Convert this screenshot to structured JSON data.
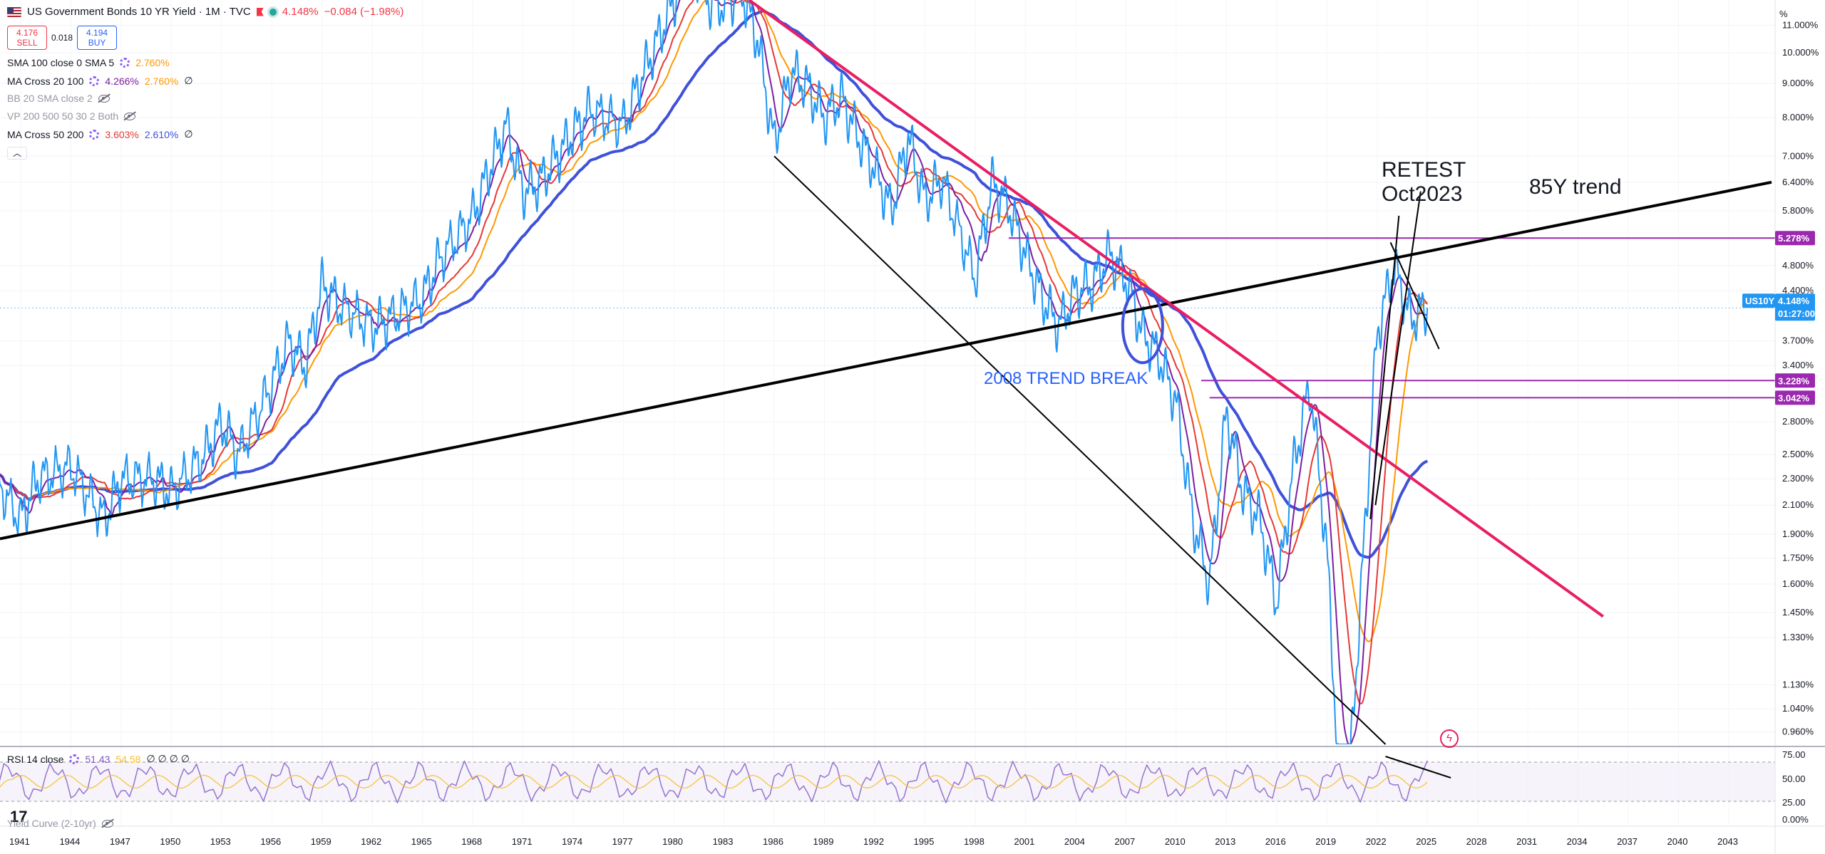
{
  "header": {
    "title": "US Government Bonds 10 YR Yield · 1M · TVC",
    "last_value": "4.148%",
    "change": "−0.084 (−1.98%)"
  },
  "trade": {
    "sell_price": "4.176",
    "sell_label": "SELL",
    "spread": "0.018",
    "buy_price": "4.194",
    "buy_label": "BUY"
  },
  "indicators": [
    {
      "name": "SMA 100 close 0 SMA 5",
      "v1": "2.760%",
      "v2": "",
      "v3": ""
    },
    {
      "name": "MA Cross 20 100",
      "v1": "4.266%",
      "v2": "2.760%",
      "v3": "∅"
    },
    {
      "name": "BB 20 SMA close 2",
      "v1": "",
      "v2": "",
      "v3": ""
    },
    {
      "name": "VP 200 500 50 30 2 Both",
      "v1": "",
      "v2": "",
      "v3": ""
    },
    {
      "name": "MA Cross 50 200",
      "v1": "3.603%",
      "v2": "2.610%",
      "v3": "∅"
    }
  ],
  "collapse_icon": "chevron-up-icon",
  "price_axis": {
    "unit": "%",
    "labels": [
      "11.000%",
      "10.000%",
      "9.000%",
      "8.000%",
      "7.000%",
      "6.400%",
      "5.800%",
      "4.800%",
      "4.400%",
      "3.700%",
      "3.400%",
      "2.800%",
      "2.500%",
      "2.300%",
      "2.100%",
      "1.900%",
      "1.750%",
      "1.600%",
      "1.450%",
      "1.330%",
      "1.130%",
      "1.040%",
      "0.960%"
    ],
    "badges": [
      {
        "text": "5.278%",
        "color": "#9c27b0"
      },
      {
        "text": "US10Y",
        "color": "#2196f3"
      },
      {
        "text": "4.148%",
        "color": "#2196f3"
      },
      {
        "text": "01:27:00",
        "color": "#2196f3"
      },
      {
        "text": "3.228%",
        "color": "#9c27b0"
      },
      {
        "text": "3.042%",
        "color": "#9c27b0"
      }
    ]
  },
  "time_axis": {
    "labels": [
      "1941",
      "1944",
      "1947",
      "1950",
      "1953",
      "1956",
      "1959",
      "1962",
      "1965",
      "1968",
      "1971",
      "1974",
      "1977",
      "1980",
      "1983",
      "1986",
      "1989",
      "1992",
      "1995",
      "1998",
      "2001",
      "2004",
      "2007",
      "2010",
      "2013",
      "2016",
      "2019",
      "2022",
      "2025",
      "2028",
      "2031",
      "2034",
      "2037",
      "2040",
      "2043"
    ]
  },
  "annotations": {
    "retest": "RETEST",
    "retest_date": "Oct2023",
    "trend85": "85Y trend",
    "trend_break": "2008 TREND BREAK"
  },
  "rsi": {
    "label": "RSI 14 close",
    "v1": "51.43",
    "v2": "54.58",
    "v3": "∅ ∅ ∅ ∅",
    "levels": [
      "75.00",
      "50.00",
      "25.00",
      "0.00%"
    ]
  },
  "yield_curve": {
    "label": "Yield Curve (2-10yr)"
  },
  "colors": {
    "price": "#2196f3",
    "ma_red": "#e53935",
    "ma_orange": "#ff9800",
    "ma_purple": "#7b1fa2",
    "ma_blue": "#3f51d9",
    "trend_pink": "#e91e63",
    "trend_black": "#000000",
    "level_purple": "#9c27b0",
    "rsi": "#9575cd"
  },
  "chart_data": {
    "type": "line",
    "title": "US Government Bonds 10 YR Yield · 1M · TVC",
    "xlabel": "",
    "ylabel": "",
    "log_scale": true,
    "ylim": [
      0.92,
      12.0
    ],
    "x_range": [
      "1939",
      "2045"
    ],
    "series": [
      {
        "x": [
          1939,
          1941,
          1942,
          1944,
          1946,
          1947,
          1949,
          1950,
          1952,
          1953,
          1954,
          1956,
          1957,
          1958,
          1959,
          1960,
          1962,
          1963,
          1965,
          1966,
          1968,
          1969,
          1970,
          1971,
          1972,
          1973,
          1974,
          1975,
          1977,
          1978,
          1979,
          1980,
          1981,
          1982,
          1983,
          1984,
          1985,
          1986,
          1987,
          1988,
          1989,
          1990,
          1991,
          1992,
          1993,
          1994,
          1995,
          1996,
          1998,
          1999,
          2000,
          2001,
          2002,
          2003,
          2004,
          2005,
          2006,
          2007,
          2008,
          2009,
          2010,
          2011,
          2012,
          2013,
          2014,
          2015,
          2016,
          2017,
          2018,
          2019,
          2020,
          2021,
          2022,
          2023,
          2024,
          2025
        ],
        "y": [
          2.4,
          2.0,
          2.3,
          2.4,
          2.0,
          2.3,
          2.3,
          2.2,
          2.5,
          2.8,
          2.5,
          3.2,
          3.7,
          3.4,
          4.5,
          4.2,
          3.9,
          4.0,
          4.3,
          4.9,
          5.7,
          6.7,
          7.8,
          6.2,
          6.4,
          7.0,
          7.6,
          8.2,
          7.8,
          9.1,
          10.4,
          12.0,
          13.9,
          12.0,
          11.8,
          12.5,
          10.5,
          7.3,
          9.4,
          8.9,
          8.0,
          8.6,
          7.5,
          6.7,
          5.8,
          7.5,
          6.0,
          6.5,
          4.6,
          6.4,
          5.9,
          5.0,
          4.3,
          3.9,
          4.4,
          4.5,
          5.0,
          4.6,
          3.8,
          3.5,
          3.0,
          2.0,
          1.6,
          2.9,
          2.2,
          2.0,
          1.5,
          2.4,
          3.2,
          1.8,
          0.6,
          1.5,
          3.8,
          4.8,
          4.0,
          4.15
        ]
      },
      {
        "name": "MA Cross 20 100"
      },
      {
        "name": "MA Cross 50 200"
      }
    ],
    "horizontal_levels": [
      5.278,
      3.228,
      3.042
    ]
  }
}
